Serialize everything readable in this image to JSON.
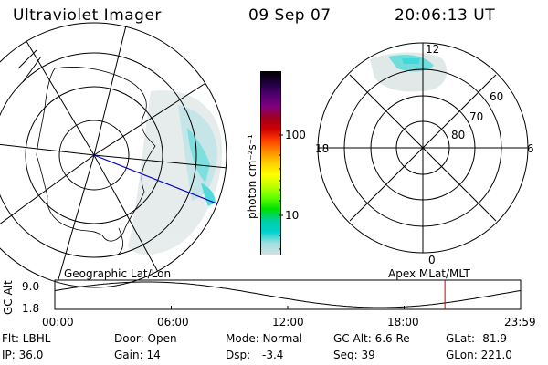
{
  "header": {
    "title": "Ultraviolet Imager",
    "date": "09 Sep 07",
    "time": "20:06:13 UT"
  },
  "left_map": {
    "label": "Geographic Lat/Lon"
  },
  "right_map": {
    "label": "Apex MLat/MLT",
    "mlt_labels": {
      "top": "12",
      "left": "18",
      "right": "6",
      "bottom": "0"
    },
    "lat_labels": [
      "60",
      "70",
      "80"
    ]
  },
  "colorbar": {
    "unit_label": "photon cm⁻²s⁻¹",
    "tick_labels": [
      "100",
      "10"
    ],
    "colors": [
      "#000000",
      "#200040",
      "#500070",
      "#800080",
      "#a00020",
      "#d00000",
      "#ff4000",
      "#ff9000",
      "#ffd000",
      "#ffff00",
      "#c0ff00",
      "#60ff00",
      "#00e000",
      "#00d0a0",
      "#00d0d0",
      "#a0e0e0",
      "#d0e0e0"
    ]
  },
  "altitude_strip": {
    "ylabel": "GC Alt",
    "yticks": [
      "9.0",
      "1.8"
    ],
    "xticks": [
      "00:00",
      "06:00",
      "12:00",
      "18:00",
      "23:59"
    ],
    "current_hour": 20.1,
    "marker_color": "#cc0000"
  },
  "footer": {
    "row1": {
      "filter": "Flt: LBHL",
      "door": "Door: Open",
      "mode": "Mode: Normal",
      "gc_alt": "GC Alt: 6.6 Re",
      "glat": "GLat: -81.9"
    },
    "row2": {
      "ip": "IP: 36.0",
      "gain": "Gain: 14",
      "dsp_label": "Dsp:",
      "dsp_value": "-3.4",
      "seq": "Seq: 39",
      "glon": "GLon: 221.0"
    }
  }
}
